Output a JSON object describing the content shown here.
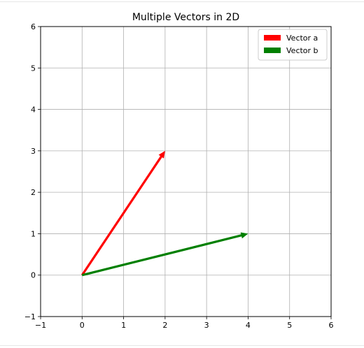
{
  "chart_data": {
    "type": "vector",
    "title": "Multiple Vectors in 2D",
    "xlim": [
      -1,
      6
    ],
    "ylim": [
      -1,
      6
    ],
    "xticks": [
      "−1",
      "0",
      "1",
      "2",
      "3",
      "4",
      "5",
      "6"
    ],
    "yticks": [
      "−1",
      "0",
      "1",
      "2",
      "3",
      "4",
      "5",
      "6"
    ],
    "grid": true,
    "legend_position": "top-right",
    "series": [
      {
        "name": "Vector a",
        "origin": [
          0,
          0
        ],
        "vector": [
          2,
          3
        ],
        "color": "#ff0000"
      },
      {
        "name": "Vector b",
        "origin": [
          0,
          0
        ],
        "vector": [
          4,
          1
        ],
        "color": "#008000"
      }
    ]
  }
}
